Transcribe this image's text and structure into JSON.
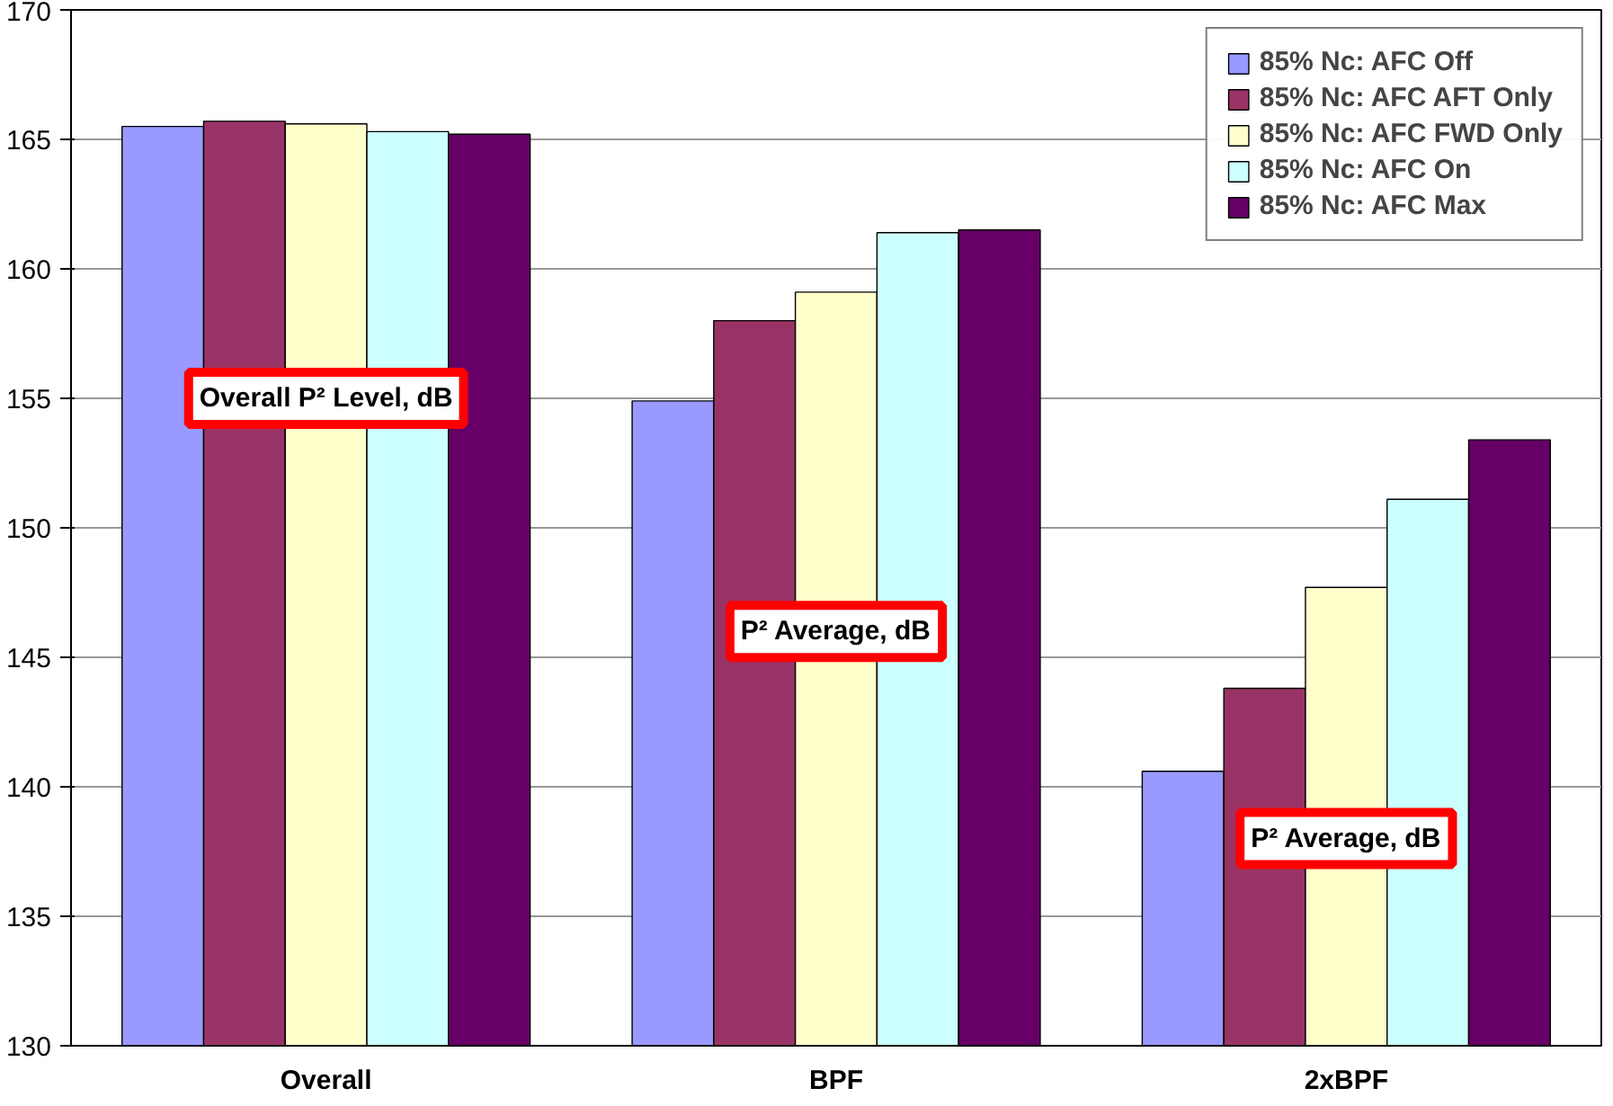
{
  "chart_data": {
    "type": "bar",
    "categories": [
      "Overall",
      "BPF",
      "2xBPF"
    ],
    "series": [
      {
        "name": "85% Nc: AFC Off",
        "color": "#9999ff",
        "values": [
          165.5,
          154.9,
          140.6
        ]
      },
      {
        "name": "85% Nc: AFC AFT Only",
        "color": "#993366",
        "values": [
          165.7,
          158.0,
          143.8
        ]
      },
      {
        "name": "85% Nc: AFC FWD Only",
        "color": "#ffffcc",
        "values": [
          165.6,
          159.1,
          147.7
        ]
      },
      {
        "name": "85% Nc: AFC On",
        "color": "#ccffff",
        "values": [
          165.3,
          161.4,
          151.1
        ]
      },
      {
        "name": "85% Nc: AFC Max",
        "color": "#660066",
        "values": [
          165.2,
          161.5,
          153.4
        ]
      }
    ],
    "ylim": [
      130,
      170
    ],
    "yticks": [
      130,
      135,
      140,
      145,
      150,
      155,
      160,
      165,
      170
    ],
    "grid": "y",
    "legend": "top right",
    "annotations": [
      "Overall P² Level, dB",
      "P² Average, dB",
      "P² Average, dB"
    ]
  }
}
